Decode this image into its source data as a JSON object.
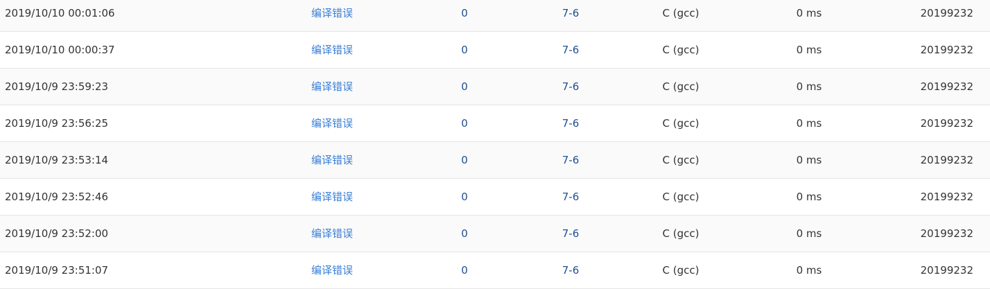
{
  "colors": {
    "status_link": "#3a7fd6",
    "score": "#1f4f8f",
    "row_stripe": "#fafafa",
    "divider": "#e4e4e4"
  },
  "rows": [
    {
      "time": "2019/10/10 00:01:06",
      "status": "编译错误",
      "score": "0",
      "problem": "7-6",
      "compiler": "C (gcc)",
      "duration": "0 ms",
      "user": "20199232"
    },
    {
      "time": "2019/10/10 00:00:37",
      "status": "编译错误",
      "score": "0",
      "problem": "7-6",
      "compiler": "C (gcc)",
      "duration": "0 ms",
      "user": "20199232"
    },
    {
      "time": "2019/10/9 23:59:23",
      "status": "编译错误",
      "score": "0",
      "problem": "7-6",
      "compiler": "C (gcc)",
      "duration": "0 ms",
      "user": "20199232"
    },
    {
      "time": "2019/10/9 23:56:25",
      "status": "编译错误",
      "score": "0",
      "problem": "7-6",
      "compiler": "C (gcc)",
      "duration": "0 ms",
      "user": "20199232"
    },
    {
      "time": "2019/10/9 23:53:14",
      "status": "编译错误",
      "score": "0",
      "problem": "7-6",
      "compiler": "C (gcc)",
      "duration": "0 ms",
      "user": "20199232"
    },
    {
      "time": "2019/10/9 23:52:46",
      "status": "编译错误",
      "score": "0",
      "problem": "7-6",
      "compiler": "C (gcc)",
      "duration": "0 ms",
      "user": "20199232"
    },
    {
      "time": "2019/10/9 23:52:00",
      "status": "编译错误",
      "score": "0",
      "problem": "7-6",
      "compiler": "C (gcc)",
      "duration": "0 ms",
      "user": "20199232"
    },
    {
      "time": "2019/10/9 23:51:07",
      "status": "编译错误",
      "score": "0",
      "problem": "7-6",
      "compiler": "C (gcc)",
      "duration": "0 ms",
      "user": "20199232"
    }
  ]
}
